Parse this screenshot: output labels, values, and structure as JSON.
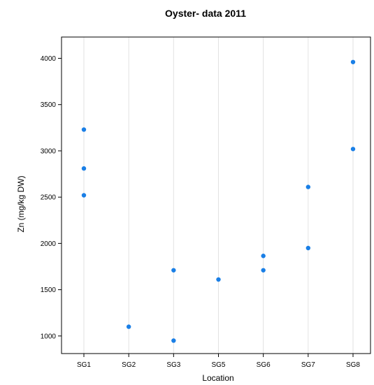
{
  "chart_data": {
    "type": "scatter",
    "title": "Oyster- data 2011",
    "xlabel": "Location",
    "ylabel": "Zn (mg/kg DW)",
    "categories": [
      "SG1",
      "SG2",
      "SG3",
      "SG5",
      "SG6",
      "SG7",
      "SG8"
    ],
    "yticks": [
      1000,
      1500,
      2000,
      2500,
      3000,
      3500,
      4000
    ],
    "ylim": [
      810,
      4230
    ],
    "grid": "vertical",
    "point_color": "#1a7fe6",
    "points": [
      {
        "x": "SG1",
        "y": 3230
      },
      {
        "x": "SG1",
        "y": 2810
      },
      {
        "x": "SG1",
        "y": 2520
      },
      {
        "x": "SG2",
        "y": 1100
      },
      {
        "x": "SG3",
        "y": 1710
      },
      {
        "x": "SG3",
        "y": 950
      },
      {
        "x": "SG5",
        "y": 1610
      },
      {
        "x": "SG6",
        "y": 1865
      },
      {
        "x": "SG6",
        "y": 1710
      },
      {
        "x": "SG7",
        "y": 2610
      },
      {
        "x": "SG7",
        "y": 1950
      },
      {
        "x": "SG8",
        "y": 3960
      },
      {
        "x": "SG8",
        "y": 3020
      }
    ]
  }
}
